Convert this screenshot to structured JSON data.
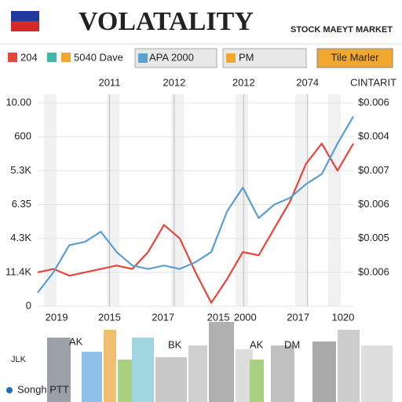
{
  "header": {
    "title": "VOLATALITY",
    "subtitle": "STOCK MAEYT MARKET"
  },
  "legend_extra": [
    "5040 Dave",
    "PM",
    "Tile Marler"
  ],
  "chart_data": {
    "type": "line",
    "x": [
      0,
      2,
      4,
      6,
      8,
      10,
      12,
      14,
      16,
      18,
      20,
      22,
      24,
      26,
      28,
      30,
      32,
      34,
      36,
      38,
      40
    ],
    "xlim": [
      0,
      40
    ],
    "series": [
      {
        "name": "204",
        "color": "#e8453c",
        "values": [
          1.0,
          1.1,
          0.9,
          1.0,
          1.1,
          1.2,
          1.1,
          1.6,
          2.4,
          2.0,
          1.0,
          0.1,
          0.8,
          1.6,
          1.5,
          2.3,
          3.1,
          4.2,
          4.8,
          4.0,
          4.8
        ]
      },
      {
        "name": "APA 2000",
        "color": "#5a9fd4",
        "values": [
          0.4,
          1.0,
          1.8,
          1.9,
          2.2,
          1.6,
          1.2,
          1.1,
          1.2,
          1.1,
          1.3,
          1.6,
          2.8,
          3.5,
          2.6,
          3.0,
          3.2,
          3.6,
          3.9,
          4.8,
          5.6
        ]
      }
    ],
    "xticks": [
      {
        "value": 2.4,
        "label": "2019"
      },
      {
        "value": 9.1,
        "label": "2015"
      },
      {
        "value": 15.9,
        "label": "2017"
      },
      {
        "value": 22.9,
        "label": "2015"
      },
      {
        "value": 26.3,
        "label": "2000"
      },
      {
        "value": 33,
        "label": "2017"
      },
      {
        "value": 38.7,
        "label": "1020"
      }
    ],
    "x2ticks": [
      {
        "value": 9.1,
        "label": "2011"
      },
      {
        "value": 17.3,
        "label": "2012"
      },
      {
        "value": 26.1,
        "label": "2012"
      },
      {
        "value": 34.2,
        "label": "2074"
      }
    ],
    "ylim": [
      0,
      6
    ],
    "yticks": [
      {
        "value": 6,
        "label": "10.00"
      },
      {
        "value": 5,
        "label": "600"
      },
      {
        "value": 4,
        "label": "5.3K"
      },
      {
        "value": 3,
        "label": "6.35"
      },
      {
        "value": 2,
        "label": "4.3K"
      },
      {
        "value": 1,
        "label": "11.4K"
      },
      0
    ],
    "y2label": "CINTARIT",
    "y2lim": [
      0,
      6
    ],
    "y2ticks": [
      {
        "value": 6,
        "label": "$0.006"
      },
      {
        "value": 5,
        "label": "$0.004"
      },
      {
        "value": 4,
        "label": "$0.007"
      },
      {
        "value": 3,
        "label": "$0.006"
      },
      {
        "value": 2,
        "label": "$0.005"
      },
      {
        "value": 1,
        "label": "$0.006"
      }
    ],
    "grid": true
  },
  "city_labels": [
    "AK",
    "BK",
    "AK",
    "DM",
    "JLK"
  ],
  "footer": "Songh PTT"
}
